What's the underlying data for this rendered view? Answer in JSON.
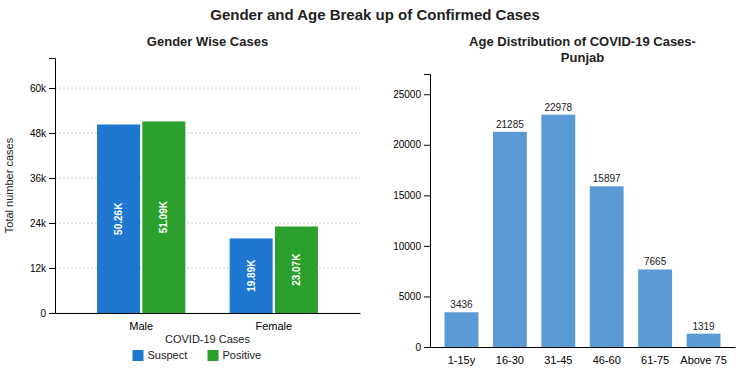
{
  "title": "Gender and Age Break up of Confirmed Cases",
  "chart_data": [
    {
      "type": "bar",
      "title": "Gender Wise Cases",
      "categories": [
        "Male",
        "Female"
      ],
      "series": [
        {
          "name": "Suspect",
          "color": "#1f77d0",
          "values": [
            50260,
            19890
          ],
          "value_labels": [
            "50.26K",
            "19.89K"
          ]
        },
        {
          "name": "Positive",
          "color": "#2ca02c",
          "values": [
            51090,
            23070
          ],
          "value_labels": [
            "51.09K",
            "23.07K"
          ]
        }
      ],
      "xlabel": "COVID-19 Cases",
      "ylabel": "Total number cases",
      "ylim": [
        0,
        68000
      ],
      "yticks": [
        0,
        {
          "value": 12000,
          "label": "12k"
        },
        {
          "value": 24000,
          "label": "24k"
        },
        {
          "value": 36000,
          "label": "36k"
        },
        {
          "value": 48000,
          "label": "48k"
        },
        {
          "value": 60000,
          "label": "60k"
        }
      ],
      "grid": true,
      "legend": "bottom",
      "data_labels": true
    },
    {
      "type": "bar",
      "title": "Age Distribution of COVID-19 Cases-\nPunjab",
      "categories": [
        "1-15y",
        "16-30",
        "31-45",
        "46-60",
        "61-75",
        "Above 75"
      ],
      "values": [
        3436,
        21285,
        22978,
        15897,
        7665,
        1319
      ],
      "color": "#5b9bd5",
      "ylim": [
        0,
        27000
      ],
      "yticks": [
        0,
        5000,
        10000,
        15000,
        20000,
        25000
      ],
      "data_labels": true
    }
  ]
}
